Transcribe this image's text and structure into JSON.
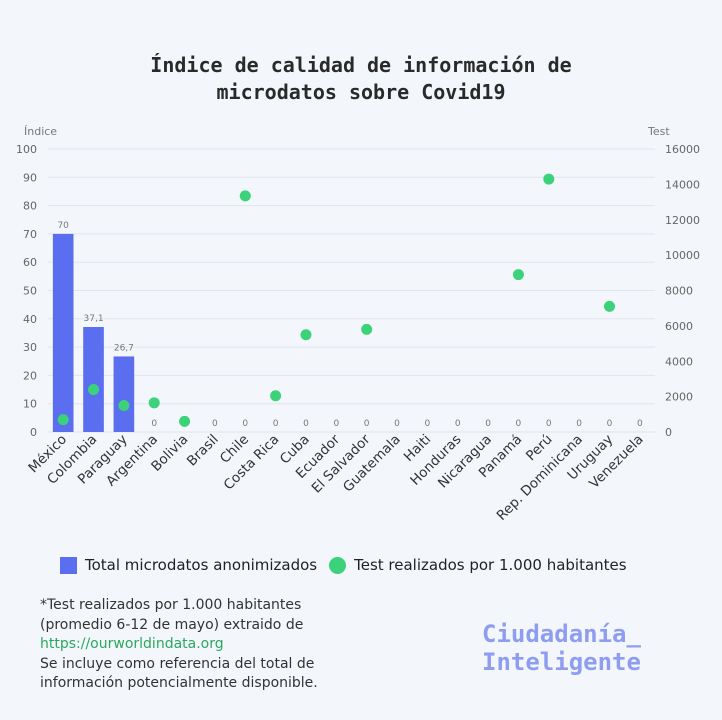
{
  "title_line1": "Índice de calidad de información de",
  "title_line2": "microdatos sobre Covid19",
  "chart_data": {
    "type": "bar",
    "left_axis_label": "Índice",
    "right_axis_label": "Test",
    "left_ylim": [
      0,
      100
    ],
    "left_ticks": [
      "0",
      "10",
      "20",
      "30",
      "40",
      "50",
      "60",
      "70",
      "80",
      "90",
      "100"
    ],
    "right_ylim": [
      0,
      16000
    ],
    "right_ticks": [
      "0",
      "2000",
      "4000",
      "6000",
      "8000",
      "10000",
      "12000",
      "14000",
      "16000"
    ],
    "categories": [
      "México",
      "Colombia",
      "Paraguay",
      "Argentina",
      "Bolivia",
      "Brasil",
      "Chile",
      "Costa Rica",
      "Cuba",
      "Ecuador",
      "El Salvador",
      "Guatemala",
      "Haiti",
      "Honduras",
      "Nicaragua",
      "Panamá",
      "Perú",
      "Rep. Dominicana",
      "Uruguay",
      "Venezuela"
    ],
    "series": [
      {
        "name": "Total microdatos anonimizados",
        "type": "bar",
        "axis": "left",
        "color": "#5b6ef0",
        "values": [
          70,
          37.1,
          26.7,
          0,
          0,
          0,
          0,
          0,
          0,
          0,
          0,
          0,
          0,
          0,
          0,
          0,
          0,
          0,
          0,
          0
        ],
        "labels": [
          "70",
          "37,1",
          "26,7",
          "0",
          "0",
          "0",
          "0",
          "0",
          "0",
          "0",
          "0",
          "0",
          "0",
          "0",
          "0",
          "0",
          "0",
          "0",
          "0",
          "0"
        ]
      },
      {
        "name": "Test realizados por 1.000 habitantes",
        "type": "scatter",
        "axis": "right",
        "color": "#3cd27a",
        "values": [
          700,
          2400,
          1500,
          1650,
          600,
          null,
          13350,
          2050,
          5500,
          null,
          5800,
          null,
          null,
          null,
          null,
          8900,
          14300,
          null,
          7100,
          null
        ]
      }
    ],
    "legend_position": "bottom"
  },
  "note": {
    "line1": "*Test realizados por 1.000 habitantes",
    "line2": "(promedio 6-12 de mayo) extraido de",
    "link": "https://ourworldindata.org",
    "line4": "Se incluye como referencia del total de",
    "line5": "información potencialmente disponible."
  },
  "brand": {
    "line1": "Ciudadanía_",
    "line2": "Inteligente"
  }
}
